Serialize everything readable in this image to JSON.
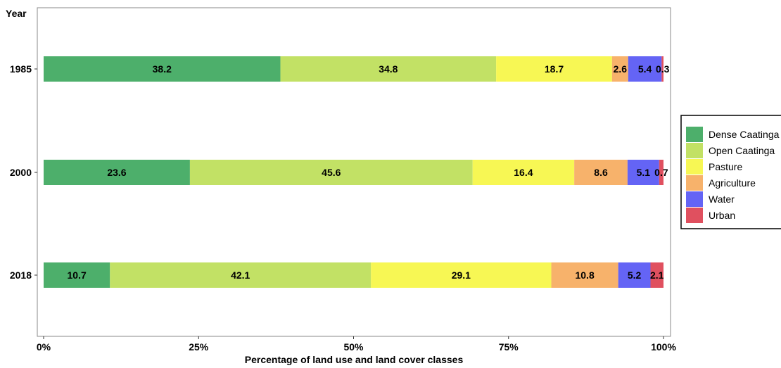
{
  "chart_data": {
    "type": "bar",
    "orientation": "horizontal",
    "stacked": true,
    "title": "",
    "xlabel": "Percentage of land use and land cover classes",
    "ylabel": "Year",
    "categories": [
      "1985",
      "2000",
      "2018"
    ],
    "xlim": [
      0,
      100
    ],
    "x_ticks": [
      "0%",
      "25%",
      "50%",
      "75%",
      "100%"
    ],
    "grid": false,
    "legend_position": "right",
    "series": [
      {
        "name": "Dense Caatinga",
        "color": "#4daf6b",
        "values": [
          38.2,
          23.6,
          10.7
        ]
      },
      {
        "name": "Open Caatinga",
        "color": "#c2e165",
        "values": [
          34.8,
          45.6,
          42.1
        ]
      },
      {
        "name": "Pasture",
        "color": "#f7f754",
        "values": [
          18.7,
          16.4,
          29.1
        ]
      },
      {
        "name": "Agriculture",
        "color": "#f7b26b",
        "values": [
          2.6,
          8.6,
          10.8
        ]
      },
      {
        "name": "Water",
        "color": "#6464f5",
        "values": [
          5.4,
          5.1,
          5.2
        ]
      },
      {
        "name": "Urban",
        "color": "#e0505f",
        "values": [
          0.3,
          0.7,
          2.1
        ]
      }
    ]
  }
}
